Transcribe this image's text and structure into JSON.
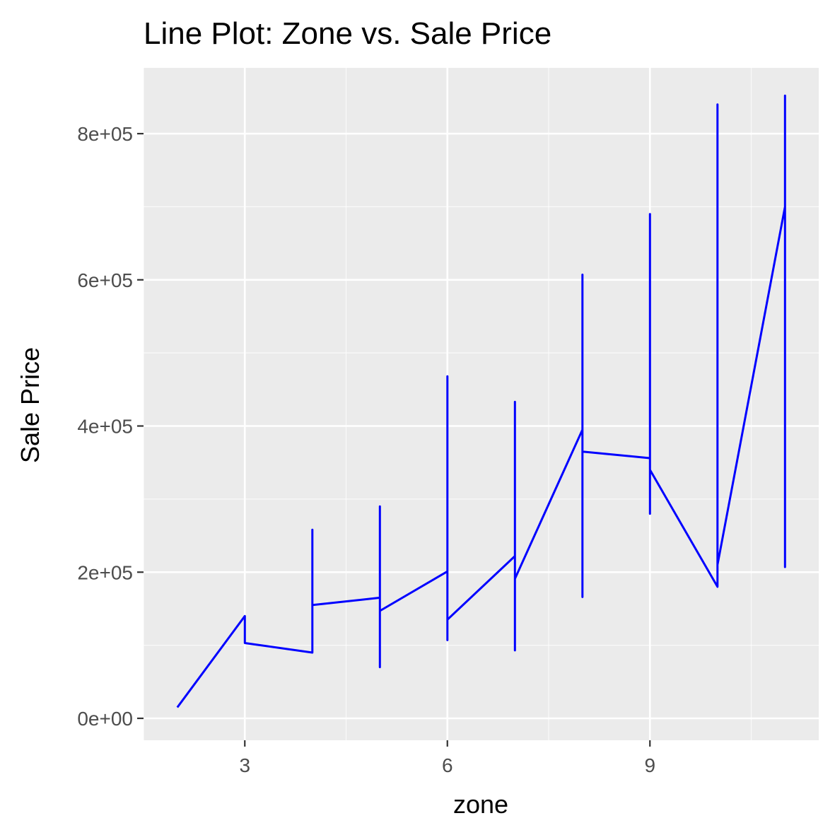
{
  "chart_data": {
    "type": "line",
    "title": "Line Plot: Zone vs. Sale Price",
    "xlabel": "zone",
    "ylabel": "Sale Price",
    "xlim": [
      1.5,
      11.5
    ],
    "ylim": [
      -30000,
      890000
    ],
    "x_ticks": [
      3,
      6,
      9
    ],
    "x_tick_labels": [
      "3",
      "6",
      "9"
    ],
    "y_ticks": [
      0,
      200000,
      400000,
      600000,
      800000
    ],
    "y_tick_labels": [
      "0e+00",
      "2e+05",
      "4e+05",
      "6e+05",
      "8e+05"
    ],
    "grid": true,
    "legend": "none",
    "series": [
      {
        "color": "#0000ff",
        "x": [
          2,
          3,
          3,
          4,
          4,
          4,
          5,
          5,
          5,
          5,
          6,
          6,
          6,
          6,
          6,
          7,
          7,
          7,
          7,
          8,
          8,
          8,
          8,
          8,
          9,
          9,
          9,
          9,
          9,
          10,
          10,
          10,
          10,
          11,
          11,
          11,
          11
        ],
        "y": [
          15000,
          140000,
          103000,
          90000,
          258000,
          155000,
          165000,
          290000,
          70000,
          147000,
          201000,
          468000,
          107000,
          135000,
          135000,
          222000,
          433000,
          93000,
          191000,
          395000,
          607000,
          166000,
          365000,
          365000,
          356000,
          690000,
          280000,
          340000,
          340000,
          180000,
          840000,
          210000,
          210000,
          700000,
          852000,
          207000,
          700000
        ]
      }
    ]
  },
  "colors": {
    "panel_background": "#ebebeb",
    "grid_major": "#ffffff",
    "grid_minor": "#f5f5f5",
    "line": "#0000ff",
    "tick_label": "#4d4d4d"
  }
}
